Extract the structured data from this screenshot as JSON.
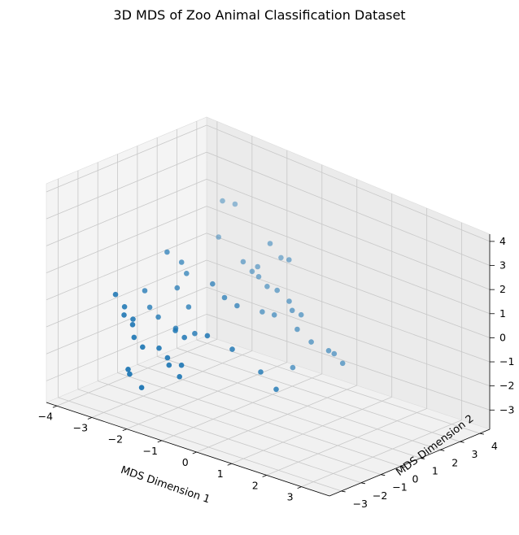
{
  "chart_data": {
    "type": "scatter",
    "projection": "3d",
    "title": "3D MDS of Zoo Animal Classification Dataset",
    "xlabel": "MDS Dimension 1",
    "ylabel": "MDS Dimension 2",
    "zlabel": "",
    "xlim": [
      -4.3,
      3.8
    ],
    "ylim": [
      -3.6,
      4.5
    ],
    "zlim": [
      -3.8,
      4.3
    ],
    "x_ticks": [
      -4,
      -3,
      -2,
      -1,
      0,
      1,
      2,
      3
    ],
    "y_ticks": [
      -3,
      -2,
      -1,
      0,
      1,
      2,
      3,
      4
    ],
    "z_ticks": [
      -3,
      -2,
      -1,
      0,
      1,
      2,
      3,
      4
    ],
    "x_tick_labels": [
      "−4",
      "−3",
      "−2",
      "−1",
      "0",
      "1",
      "2",
      "3"
    ],
    "y_tick_labels": [
      "−3",
      "−2",
      "−1",
      "0",
      "1",
      "2",
      "3",
      "4"
    ],
    "z_tick_labels": [
      "−3",
      "−2",
      "−1",
      "0",
      "1",
      "2",
      "3",
      "4"
    ],
    "grid": true,
    "point_color": "#1f77b4",
    "points": [
      {
        "x": -2.6,
        "y": 2.3,
        "z": 2.7
      },
      {
        "x": -2.3,
        "y": 2.4,
        "z": 2.7
      },
      {
        "x": -0.9,
        "y": 1.7,
        "z": 2.1
      },
      {
        "x": -0.3,
        "y": 1.6,
        "z": 1.8
      },
      {
        "x": -0.7,
        "y": 1.9,
        "z": 1.6
      },
      {
        "x": -2.6,
        "y": 2.1,
        "z": 1.4
      },
      {
        "x": -1.2,
        "y": 1.6,
        "z": 1.1
      },
      {
        "x": -1.5,
        "y": 1.4,
        "z": 1.2
      },
      {
        "x": -1.3,
        "y": 1.5,
        "z": 0.9
      },
      {
        "x": -1.0,
        "y": 1.3,
        "z": 0.9
      },
      {
        "x": -0.7,
        "y": 1.2,
        "z": 0.7
      },
      {
        "x": -0.3,
        "y": 1.0,
        "z": 0.8
      },
      {
        "x": 0.1,
        "y": 0.9,
        "z": 0.6
      },
      {
        "x": -0.5,
        "y": 0.6,
        "z": 0.0
      },
      {
        "x": -0.1,
        "y": 0.5,
        "z": 0.1
      },
      {
        "x": 0.3,
        "y": 0.7,
        "z": 0.4
      },
      {
        "x": 0.5,
        "y": 0.8,
        "z": 0.3
      },
      {
        "x": 0.5,
        "y": 0.6,
        "z": -0.2
      },
      {
        "x": 0.9,
        "y": 0.6,
        "z": -0.5
      },
      {
        "x": 1.4,
        "y": 0.6,
        "z": -0.6
      },
      {
        "x": 1.5,
        "y": 0.7,
        "z": -0.7
      },
      {
        "x": 1.8,
        "y": 0.6,
        "z": -0.9
      },
      {
        "x": 0.6,
        "y": 0.2,
        "z": -1.5
      },
      {
        "x": -2.6,
        "y": -0.5,
        "z": 1.6
      },
      {
        "x": -2.3,
        "y": -0.3,
        "z": 1.3
      },
      {
        "x": -2.1,
        "y": -0.4,
        "z": 1.0
      },
      {
        "x": -2.2,
        "y": -0.7,
        "z": 0.5
      },
      {
        "x": -1.3,
        "y": -0.5,
        "z": 1.0
      },
      {
        "x": -0.9,
        "y": -0.6,
        "z": 0.7
      },
      {
        "x": -0.6,
        "y": -0.5,
        "z": 0.5
      },
      {
        "x": -1.7,
        "y": -1.0,
        "z": 0.1
      },
      {
        "x": -2.9,
        "y": -1.1,
        "z": 0.2
      },
      {
        "x": -2.7,
        "y": -1.2,
        "z": -0.3
      },
      {
        "x": -2.4,
        "y": -1.3,
        "z": -0.5
      },
      {
        "x": -1.9,
        "y": -1.3,
        "z": -0.7
      },
      {
        "x": -1.3,
        "y": -1.4,
        "z": -0.6
      },
      {
        "x": -3.0,
        "y": -2.4,
        "z": 0.4
      },
      {
        "x": -2.8,
        "y": -2.3,
        "z": 0.0
      },
      {
        "x": -2.7,
        "y": -2.5,
        "z": -0.2
      },
      {
        "x": -2.5,
        "y": -2.4,
        "z": -0.3
      },
      {
        "x": -2.4,
        "y": -2.6,
        "z": -0.4
      },
      {
        "x": -2.3,
        "y": -2.7,
        "z": -0.8
      },
      {
        "x": -2.0,
        "y": -2.8,
        "z": -1.0
      },
      {
        "x": -1.7,
        "y": -2.5,
        "z": -1.0
      },
      {
        "x": -1.4,
        "y": -2.6,
        "z": -1.2
      },
      {
        "x": -1.3,
        "y": -2.7,
        "z": -1.4
      },
      {
        "x": -1.0,
        "y": -2.6,
        "z": -1.3
      },
      {
        "x": -1.0,
        "y": -2.7,
        "z": -1.7
      },
      {
        "x": -1.4,
        "y": -2.2,
        "z": -0.3
      },
      {
        "x": -1.2,
        "y": -2.1,
        "z": -0.5
      },
      {
        "x": -0.6,
        "y": -2.0,
        "z": -0.2
      },
      {
        "x": 0.0,
        "y": -1.8,
        "z": -0.5
      },
      {
        "x": 0.7,
        "y": -1.6,
        "z": -1.1
      },
      {
        "x": 1.2,
        "y": -1.7,
        "z": -1.5
      },
      {
        "x": -2.3,
        "y": -3.0,
        "z": -1.9
      },
      {
        "x": -2.2,
        "y": -3.1,
        "z": -2.0
      },
      {
        "x": -1.8,
        "y": -3.2,
        "z": -2.3
      }
    ]
  }
}
